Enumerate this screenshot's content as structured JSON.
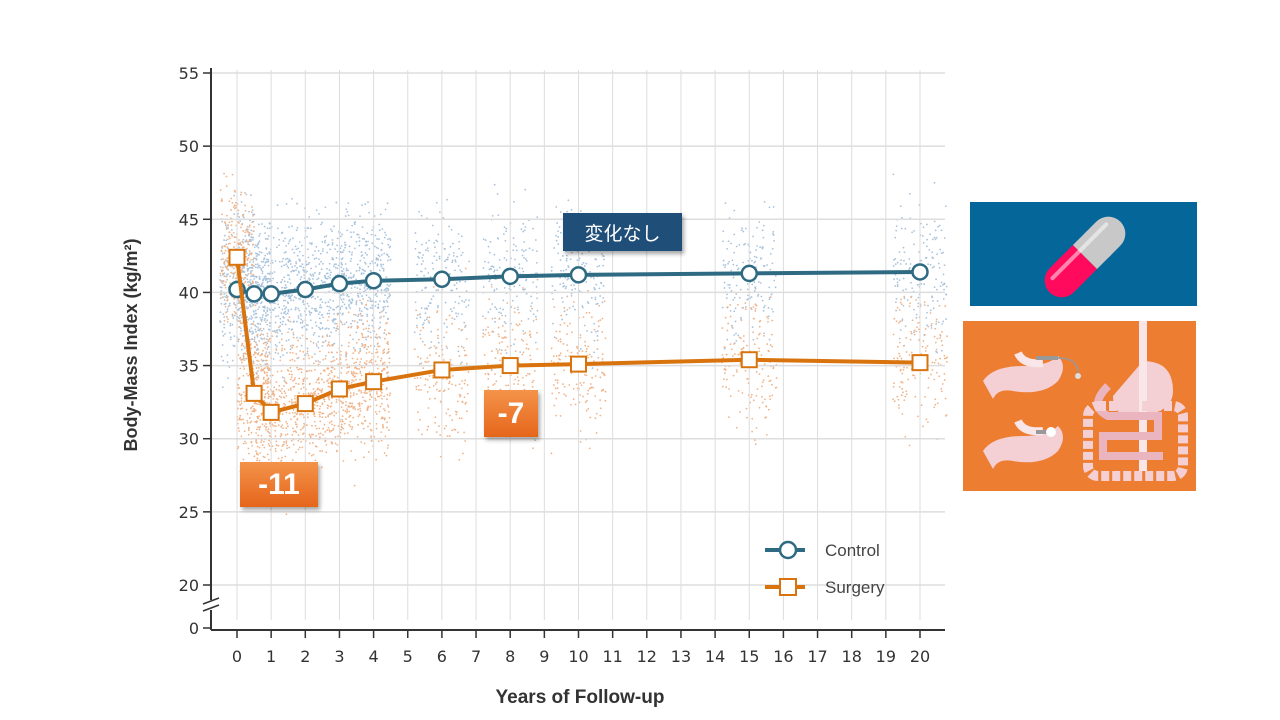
{
  "chart_data": {
    "type": "line",
    "xlabel": "Years of Follow-up",
    "ylabel": "Body-Mass Index (kg/m²)",
    "x_ticks": [
      0,
      1,
      2,
      3,
      4,
      5,
      6,
      7,
      8,
      9,
      10,
      11,
      12,
      13,
      14,
      15,
      16,
      17,
      18,
      19,
      20
    ],
    "y_ticks": [
      20,
      25,
      30,
      35,
      40,
      45,
      50,
      55
    ],
    "y_break_tick": 0,
    "xlim": [
      0,
      20
    ],
    "ylim": [
      20,
      55
    ],
    "grid": true,
    "legend_placement": "bottom-right",
    "series": [
      {
        "name": "Control",
        "color": "#2e6b82",
        "marker": "circle",
        "x": [
          0,
          0.5,
          1,
          2,
          3,
          4,
          6,
          8,
          10,
          15,
          20
        ],
        "y": [
          40.2,
          39.9,
          39.9,
          40.2,
          40.6,
          40.8,
          40.9,
          41.1,
          41.2,
          41.3,
          41.4
        ]
      },
      {
        "name": "Surgery",
        "color": "#d9730d",
        "marker": "square",
        "x": [
          0,
          0.5,
          1,
          2,
          3,
          4,
          6,
          8,
          10,
          15,
          20
        ],
        "y": [
          42.4,
          33.1,
          31.8,
          32.4,
          33.4,
          33.9,
          34.7,
          35.0,
          35.1,
          35.4,
          35.2
        ]
      }
    ],
    "scatter_colors": {
      "control": "#a9c3dc",
      "surgery": "#f0b48a"
    },
    "annotations": [
      {
        "text": "-11",
        "color": "#ed7d31"
      },
      {
        "text": "-7",
        "color": "#ed7d31"
      },
      {
        "text": "変化なし",
        "color": "#1f4e79"
      }
    ]
  },
  "panels": {
    "medication": {
      "icon": "pill-icon",
      "color": "#046699"
    },
    "surgery": {
      "icon": "stomach-surgery-icon",
      "color": "#ed7d31"
    }
  }
}
